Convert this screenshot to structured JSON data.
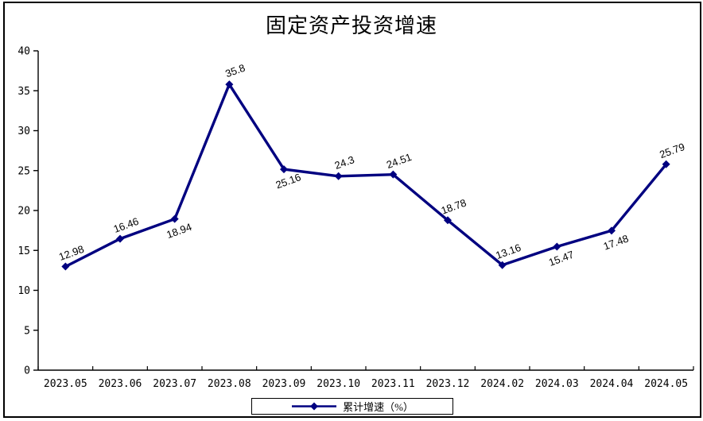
{
  "chart_data": {
    "type": "line",
    "title": "固定资产投资增速",
    "categories": [
      "2023.05",
      "2023.06",
      "2023.07",
      "2023.08",
      "2023.09",
      "2023.10",
      "2023.11",
      "2023.12",
      "2024.02",
      "2024.03",
      "2024.04",
      "2024.05"
    ],
    "series": [
      {
        "name": "累计增速（%）",
        "values": [
          12.98,
          16.46,
          18.94,
          35.8,
          25.16,
          24.3,
          24.51,
          18.78,
          13.16,
          15.47,
          17.48,
          25.79
        ],
        "color": "#000080",
        "marker": "diamond"
      }
    ],
    "value_labels": [
      "12.98",
      "16.46",
      "18.94",
      "35.8",
      "25.16",
      "24.3",
      "24.51",
      "18.78",
      "13.16",
      "15.47",
      "17.48",
      "25.79"
    ],
    "data_label_sides": [
      "above",
      "above",
      "below",
      "above",
      "below",
      "above",
      "above",
      "above",
      "above",
      "below",
      "below",
      "above"
    ],
    "ylim": [
      0,
      40
    ],
    "ytick_step": 5,
    "ytick_labels": [
      "0",
      "5",
      "10",
      "15",
      "20",
      "25",
      "30",
      "35",
      "40"
    ],
    "grid": false,
    "legend_position": "bottom",
    "xlabel": "",
    "ylabel": "",
    "colors": {
      "line": "#000080",
      "axis": "#000000",
      "text": "#000000",
      "frame_border": "#000000"
    }
  }
}
